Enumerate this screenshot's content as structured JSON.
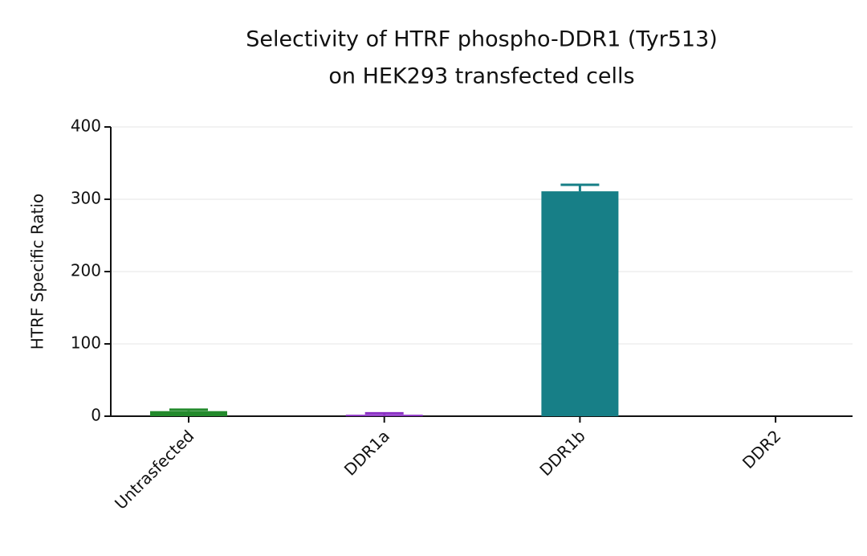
{
  "chart_data": {
    "type": "bar",
    "title": [
      "Selectivity of HTRF phospho-DDR1 (Tyr513)",
      "on HEK293 transfected cells"
    ],
    "y_label": "HTRF Specific Ratio",
    "categories": [
      "Untrasfected",
      "DDR1a",
      "DDR1b",
      "DDR2"
    ],
    "values": [
      7,
      2,
      311,
      0
    ],
    "errors": [
      2,
      2,
      9,
      0
    ],
    "colors": [
      "#238a2c",
      "#8a2fc4",
      "#177f87",
      "#177f87"
    ],
    "ylim": [
      0,
      400
    ],
    "yticks": [
      0,
      100,
      200,
      300,
      400
    ],
    "grid": true
  }
}
